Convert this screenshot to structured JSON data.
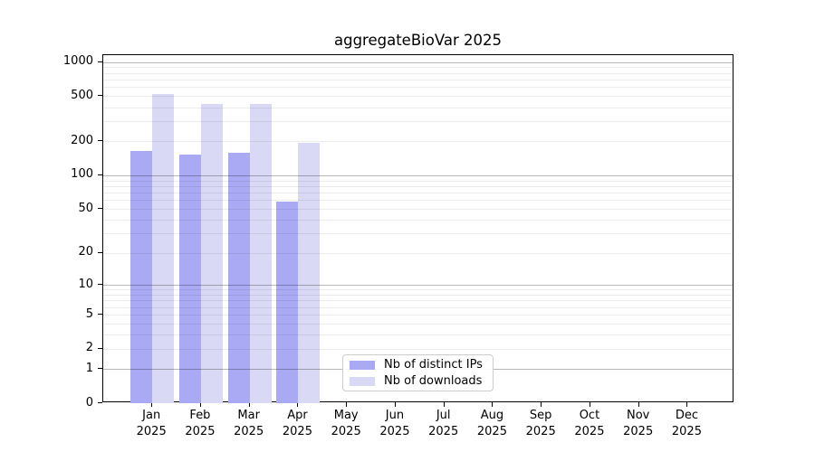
{
  "title": "aggregateBioVar 2025",
  "colors": {
    "ips_bar": "#a9a9f4",
    "downloads_bar": "#d9d9f6",
    "grid_minor": "#ededed",
    "grid_major": "#b8b8b8",
    "axis": "#000000",
    "legend_border": "#cccccc"
  },
  "chart_data": {
    "type": "bar",
    "title": "aggregateBioVar 2025",
    "categories": [
      "Jan 2025",
      "Feb 2025",
      "Mar 2025",
      "Apr 2025",
      "May 2025",
      "Jun 2025",
      "Jul 2025",
      "Aug 2025",
      "Sep 2025",
      "Oct 2025",
      "Nov 2025",
      "Dec 2025"
    ],
    "series": [
      {
        "name": "Nb of distinct IPs",
        "key": "ips",
        "color": "#a9a9f4",
        "values": [
          163,
          153,
          157,
          58,
          0,
          0,
          0,
          0,
          0,
          0,
          0,
          0
        ]
      },
      {
        "name": "Nb of downloads",
        "key": "downloads",
        "color": "#d9d9f6",
        "values": [
          523,
          425,
          427,
          194,
          0,
          0,
          0,
          0,
          0,
          0,
          0,
          0
        ]
      }
    ],
    "xlabel": "",
    "ylabel": "",
    "y_scale": "log1p",
    "ylim": [
      0,
      1150
    ],
    "y_ticks": [
      1000,
      500,
      200,
      100,
      50,
      20,
      10,
      5,
      2,
      1,
      0
    ],
    "y_major_gridlines": [
      1,
      10,
      100,
      1000
    ],
    "y_minor_gridlines": [
      2,
      3,
      4,
      5,
      6,
      7,
      8,
      9,
      20,
      30,
      40,
      50,
      60,
      70,
      80,
      90,
      200,
      300,
      400,
      500,
      600,
      700,
      800,
      900
    ],
    "grid": true,
    "legend_position": "inside-bottom-center"
  },
  "legend": {
    "items": [
      {
        "label": "Nb of distinct IPs"
      },
      {
        "label": "Nb of downloads"
      }
    ]
  }
}
